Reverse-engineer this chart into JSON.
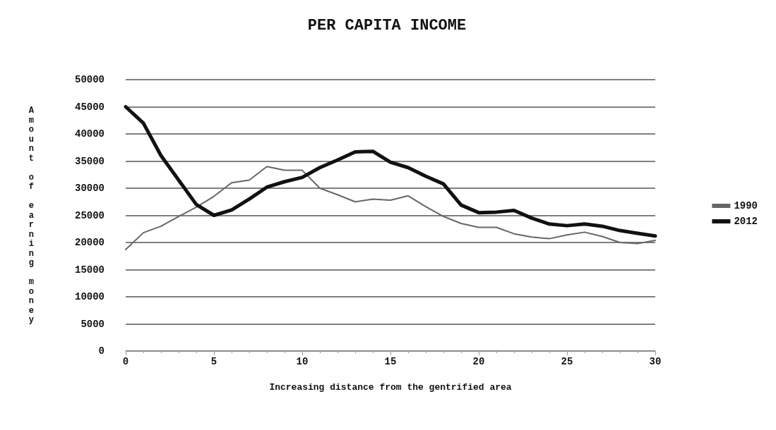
{
  "chart_data": {
    "type": "line",
    "title": "PER CAPITA INCOME",
    "xlabel": "Increasing distance from the gentrified area",
    "ylabel": "Amount of earning money",
    "x": [
      0,
      1,
      2,
      3,
      4,
      5,
      6,
      7,
      8,
      9,
      10,
      11,
      12,
      13,
      14,
      15,
      16,
      17,
      18,
      19,
      20,
      21,
      22,
      23,
      24,
      25,
      26,
      27,
      28,
      29,
      30
    ],
    "series": [
      {
        "name": "1990",
        "color": "#666666",
        "values": [
          18700,
          21800,
          23000,
          24800,
          26500,
          28500,
          31000,
          31500,
          34000,
          33300,
          33300,
          30000,
          28800,
          27500,
          28000,
          27800,
          28600,
          26600,
          24800,
          23500,
          22800,
          22800,
          21600,
          21000,
          20700,
          21400,
          21900,
          21100,
          20000,
          19800,
          20400
        ]
      },
      {
        "name": "2012",
        "color": "#111111",
        "values": [
          45000,
          42000,
          36000,
          31500,
          27000,
          25000,
          26000,
          28000,
          30200,
          31200,
          32000,
          33800,
          35200,
          36700,
          36800,
          34800,
          33800,
          32200,
          30800,
          26900,
          25500,
          25600,
          25900,
          24500,
          23400,
          23100,
          23400,
          23000,
          22200,
          21700,
          21200
        ]
      }
    ],
    "xlim": [
      0,
      30
    ],
    "xticks": [
      0,
      5,
      10,
      15,
      20,
      25,
      30
    ],
    "ylim": [
      0,
      50000
    ],
    "yticks": [
      0,
      5000,
      10000,
      15000,
      20000,
      25000,
      30000,
      35000,
      40000,
      45000,
      50000
    ],
    "grid": "y",
    "legend": "right",
    "marker": "none",
    "line_style": "solid"
  }
}
